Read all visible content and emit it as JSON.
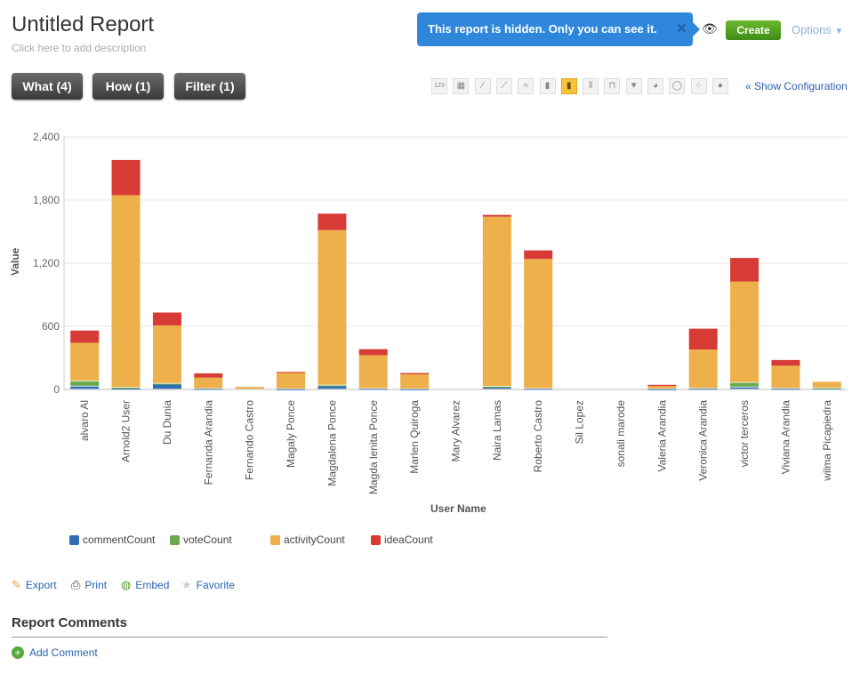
{
  "header": {
    "title": "Untitled Report",
    "description": "Click here to add description",
    "notice": "This report is hidden. Only you can see it.",
    "create": "Create",
    "options": "Options"
  },
  "tabs": {
    "what": "What (4)",
    "how": "How (1)",
    "filter": "Filter (1)"
  },
  "toolbar": {
    "icons": [
      "number-icon",
      "table-icon",
      "line-icon",
      "line-area-icon",
      "area-icon",
      "bar-icon",
      "stacked-bar-icon",
      "grouped-bar-icon",
      "waterfall-icon",
      "funnel-icon",
      "pie-icon",
      "donut-icon",
      "scatter-icon",
      "bubble-icon"
    ],
    "selected": "stacked-bar-icon",
    "show_config": "« Show Configuration"
  },
  "colors": {
    "commentCount": "#2f6db5",
    "voteCount": "#6aaa4f",
    "activityCount": "#eeb04b",
    "ideaCount": "#d63b35"
  },
  "chart_data": {
    "type": "bar",
    "stacked": true,
    "xlabel": "User Name",
    "ylabel": "Value",
    "ylim": [
      0,
      2400
    ],
    "yticks": [
      "0",
      "600",
      "1,200",
      "1,800",
      "2,400"
    ],
    "grid": true,
    "legend": "bottom",
    "categories": [
      "alvaro Al",
      "Arnold2 User",
      "Du Dunia",
      "Fernanda Arandia",
      "Fernando Castro",
      "Magaly Ponce",
      "Magdalena Ponce",
      "Magda lenita Ponce",
      "Marlen Quiroga",
      "Mary Alvarez",
      "Naira Lamas",
      "Roberto Castro",
      "Sil Lopez",
      "sonali marode",
      "Valeria Arandia",
      "Veronica Arandia",
      "victor terceros",
      "Viviana Arandia",
      "wilma Picapiedra"
    ],
    "series": [
      {
        "name": "commentCount",
        "values": [
          28,
          8,
          51,
          5,
          0,
          2,
          34,
          5,
          2,
          0,
          20,
          5,
          0,
          0,
          2,
          7,
          20,
          7,
          8
        ]
      },
      {
        "name": "voteCount",
        "values": [
          50,
          8,
          3,
          0,
          0,
          0,
          4,
          0,
          0,
          0,
          6,
          0,
          0,
          0,
          0,
          0,
          43,
          0,
          3
        ]
      },
      {
        "name": "activityCount",
        "values": [
          366,
          1830,
          555,
          108,
          25,
          160,
          1477,
          321,
          142,
          0,
          1616,
          1235,
          0,
          0,
          31,
          372,
          963,
          219,
          62
        ]
      },
      {
        "name": "ideaCount",
        "values": [
          116,
          335,
          122,
          40,
          0,
          5,
          156,
          57,
          12,
          0,
          17,
          82,
          0,
          0,
          11,
          199,
          224,
          54,
          0
        ]
      }
    ]
  },
  "actions": {
    "export": "Export",
    "print": "Print",
    "embed": "Embed",
    "favorite": "Favorite"
  },
  "comments": {
    "title": "Report Comments",
    "add": "Add Comment"
  }
}
